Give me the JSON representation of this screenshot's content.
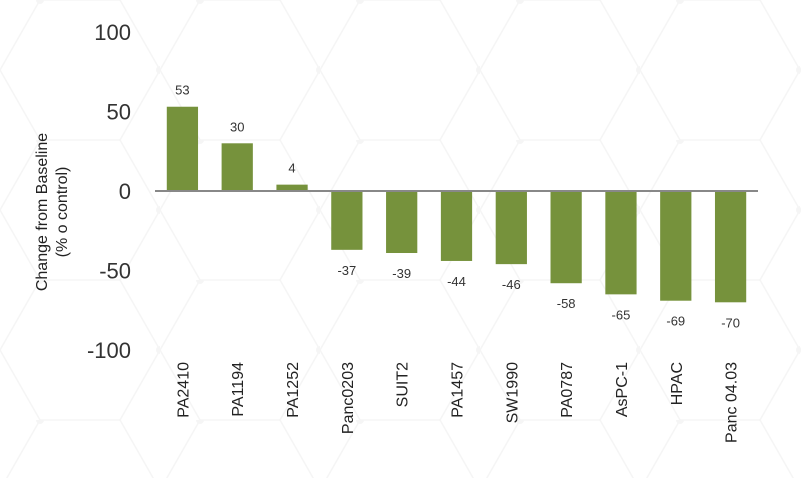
{
  "chart_data": {
    "type": "bar",
    "title": "",
    "xlabel": "",
    "ylabel_lines": [
      "Change from Baseline",
      "(% o control)"
    ],
    "categories": [
      "PA2410",
      "PA1194",
      "PA1252",
      "Panc0203",
      "SUIT2",
      "PA1457",
      "SW1990",
      "PA0787",
      "AsPC-1",
      "HPAC",
      "Panc 04.03"
    ],
    "values": [
      53,
      30,
      4,
      -37,
      -39,
      -44,
      -46,
      -58,
      -65,
      -69,
      -70
    ],
    "data_labels": [
      "53",
      "30",
      "4",
      "-37",
      "-39",
      "-44",
      "-46",
      "-58",
      "-65",
      "-69",
      "-70"
    ],
    "ylim": [
      -100,
      100
    ],
    "yticks": [
      100,
      50,
      0,
      -50,
      -100
    ],
    "grid": false,
    "bar_color": "#76923c",
    "axis_color": "#888888"
  }
}
